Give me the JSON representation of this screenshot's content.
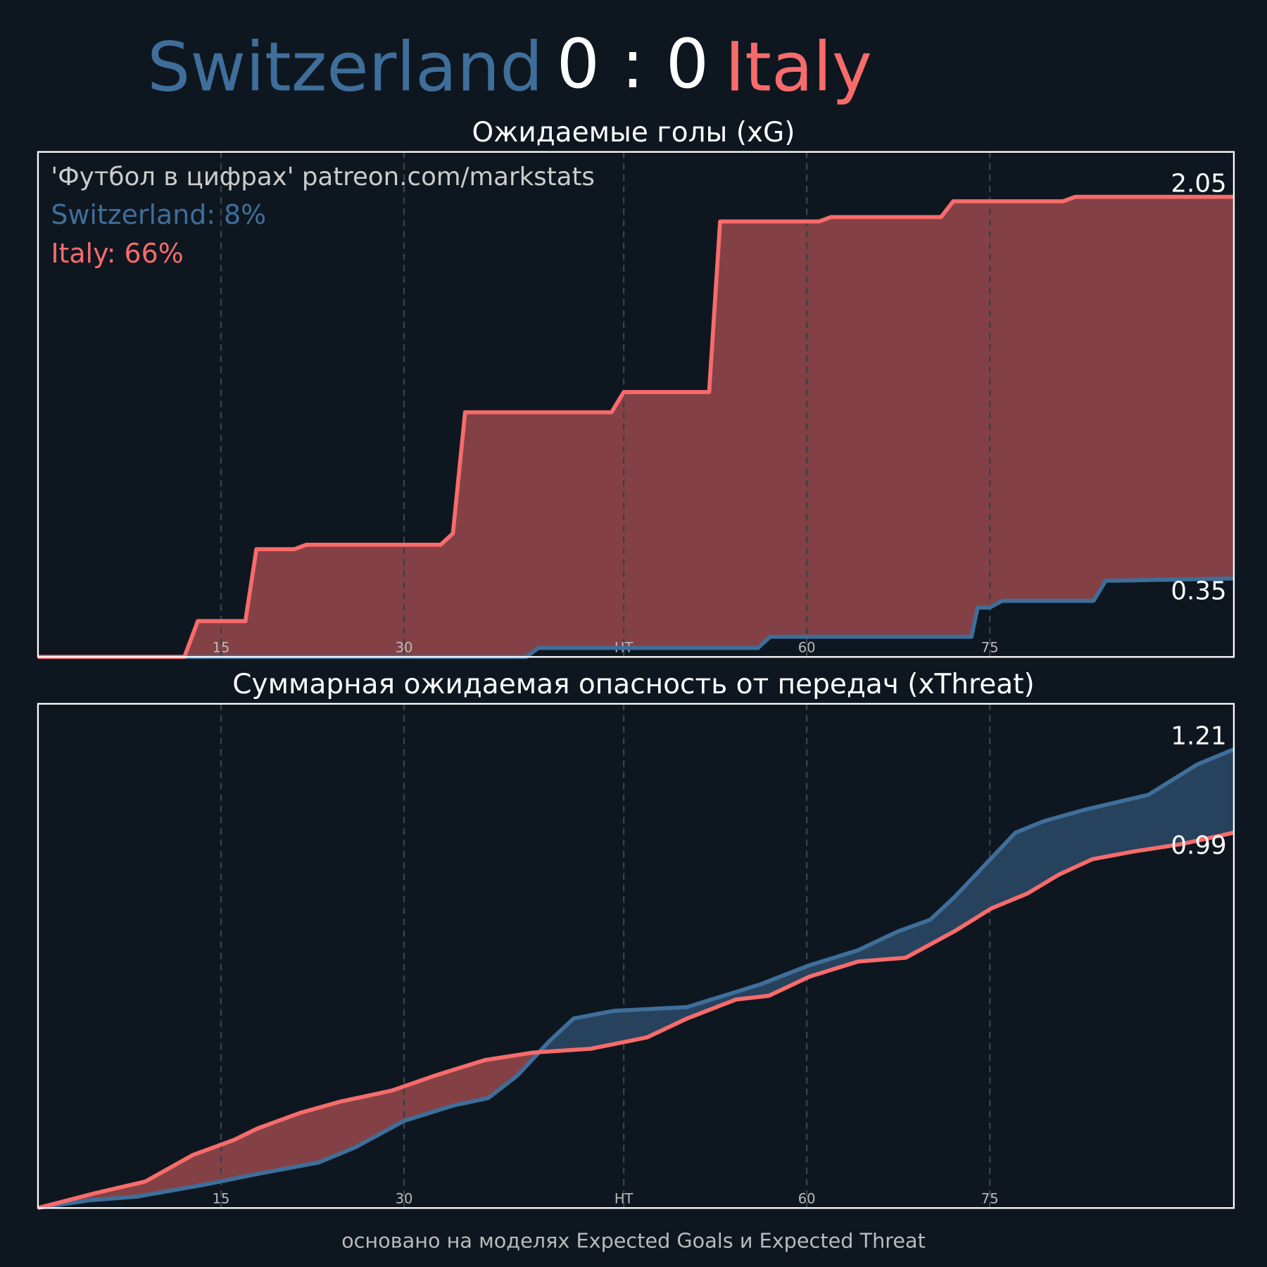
{
  "header": {
    "home": "Switzerland",
    "score": "0 : 0",
    "away": "Italy"
  },
  "chart_data": [
    {
      "type": "line",
      "title": "Ожидаемые голы (xG)",
      "annotations": [
        "'Футбол в цифрах' patreon.com/markstats",
        "Switzerland: 8%",
        "Italy: 66%"
      ],
      "xlim": [
        0,
        98
      ],
      "ylim": [
        0,
        2.25
      ],
      "xticks": [
        15,
        30,
        {
          "value": 48,
          "label": "HT"
        },
        {
          "value": 63,
          "label": "60"
        },
        {
          "value": 78,
          "label": "75"
        }
      ],
      "grid": true,
      "series": [
        {
          "name": "Switzerland",
          "color": "#3f6e9a",
          "x": [
            0,
            40,
            41,
            59,
            60,
            76.5,
            77,
            78,
            79,
            86.5,
            87.5,
            88.5,
            98
          ],
          "values": [
            0,
            0,
            0.04,
            0.04,
            0.09,
            0.09,
            0.22,
            0.22,
            0.25,
            0.25,
            0.34,
            0.34,
            0.35
          ]
        },
        {
          "name": "Italy",
          "color": "#f86b6b",
          "x": [
            0,
            12,
            13.1,
            17,
            17.9,
            21,
            22,
            33,
            34,
            35,
            47,
            48,
            55,
            55.9,
            64,
            65,
            74,
            75,
            84,
            85,
            98
          ],
          "values": [
            0,
            0,
            0.16,
            0.16,
            0.48,
            0.48,
            0.5,
            0.5,
            0.55,
            1.09,
            1.09,
            1.18,
            1.18,
            1.94,
            1.94,
            1.96,
            1.96,
            2.03,
            2.03,
            2.05,
            2.05
          ]
        }
      ]
    },
    {
      "type": "line",
      "title": "Суммарная ожидаемая опасность от передач (xThreat)",
      "xlim": [
        0,
        98
      ],
      "ylim": [
        0,
        1.33
      ],
      "xticks": [
        15,
        30,
        {
          "value": 48,
          "label": "HT"
        },
        {
          "value": 63,
          "label": "60"
        },
        {
          "value": 78,
          "label": "75"
        }
      ],
      "grid": true,
      "series": [
        {
          "name": "Switzerland",
          "color": "#3f6e9a",
          "x": [
            0,
            4.1,
            8.1,
            13.4,
            18,
            23,
            26,
            30,
            34,
            36.9,
            39.3,
            41.9,
            43.9,
            47.2,
            53.2,
            59.2,
            63.2,
            67.2,
            70.5,
            73.1,
            75.1,
            80.1,
            82.4,
            85.7,
            91,
            95,
            98
          ],
          "values": [
            0,
            0.02,
            0.03,
            0.06,
            0.09,
            0.12,
            0.16,
            0.23,
            0.27,
            0.29,
            0.35,
            0.44,
            0.5,
            0.52,
            0.53,
            0.59,
            0.64,
            0.68,
            0.73,
            0.76,
            0.82,
            0.99,
            1.02,
            1.05,
            1.09,
            1.17,
            1.21
          ]
        },
        {
          "name": "Italy",
          "color": "#f86b6b",
          "x": [
            0,
            4.8,
            8.8,
            12.7,
            16.1,
            18,
            21.4,
            24.7,
            29,
            32.6,
            36.6,
            40.6,
            45.3,
            49.9,
            53.2,
            57.2,
            59.9,
            63.2,
            67.2,
            71.1,
            75.1,
            78.1,
            81.1,
            83.7,
            86.4,
            89.7,
            93.7,
            98
          ],
          "values": [
            0,
            0.04,
            0.07,
            0.14,
            0.18,
            0.21,
            0.25,
            0.28,
            0.31,
            0.35,
            0.39,
            0.41,
            0.42,
            0.45,
            0.5,
            0.55,
            0.56,
            0.61,
            0.65,
            0.66,
            0.73,
            0.79,
            0.83,
            0.88,
            0.92,
            0.94,
            0.96,
            0.99
          ]
        }
      ]
    }
  ],
  "footer": "основано на моделях Expected Goals и Expected Threat"
}
